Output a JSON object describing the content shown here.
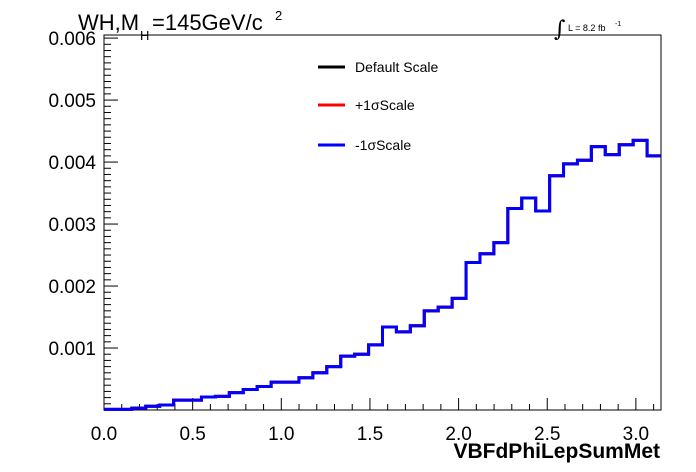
{
  "chart_data": {
    "type": "line",
    "title": "WH,M",
    "title_sub": "H",
    "title_rest": "=145GeV/c",
    "title_sup": "2",
    "lumi_label": "L = 8.2 fb",
    "lumi_sup": "-1",
    "xlabel": "VBFdPhiLepSumMet",
    "ylabel": "",
    "xlim": [
      0.0,
      3.1416
    ],
    "ylim": [
      0.0,
      0.00605
    ],
    "x_ticks": [
      "0.0",
      "0.5",
      "1.0",
      "1.5",
      "2.0",
      "2.5",
      "3.0"
    ],
    "y_ticks": [
      "0.001",
      "0.002",
      "0.003",
      "0.004",
      "0.005",
      "0.006"
    ],
    "legend_position": "top-center",
    "grid": false,
    "bin_edges": [
      0.0,
      0.0785,
      0.1571,
      0.2356,
      0.3142,
      0.3927,
      0.4712,
      0.5498,
      0.6283,
      0.7069,
      0.7854,
      0.8639,
      0.9425,
      1.021,
      1.0996,
      1.1781,
      1.2566,
      1.3352,
      1.4137,
      1.4923,
      1.5708,
      1.6493,
      1.7279,
      1.8064,
      1.885,
      1.9635,
      2.042,
      2.1206,
      2.1991,
      2.2777,
      2.3562,
      2.4347,
      2.5133,
      2.5918,
      2.6704,
      2.7489,
      2.8274,
      2.906,
      2.9845,
      3.0631,
      3.1416
    ],
    "series": [
      {
        "name": "Default Scale",
        "color": "#000000",
        "values": [
          1e-05,
          1e-05,
          3e-05,
          6e-05,
          8e-05,
          0.00016,
          0.00016,
          0.00021,
          0.00022,
          0.00028,
          0.00033,
          0.00038,
          0.00045,
          0.00045,
          0.00052,
          0.0006,
          0.0007,
          0.00087,
          0.0009,
          0.00105,
          0.00134,
          0.00126,
          0.00136,
          0.0016,
          0.00166,
          0.0018,
          0.00238,
          0.00252,
          0.0027,
          0.00325,
          0.00342,
          0.00321,
          0.00378,
          0.00397,
          0.00403,
          0.00425,
          0.00412,
          0.00428,
          0.00435,
          0.0041
        ]
      },
      {
        "name": "+1σScale",
        "color": "#ff0000",
        "values": [
          1e-05,
          1e-05,
          3e-05,
          6e-05,
          8e-05,
          0.00016,
          0.00016,
          0.00021,
          0.00022,
          0.00028,
          0.00033,
          0.00038,
          0.00045,
          0.00045,
          0.00052,
          0.0006,
          0.0007,
          0.00087,
          0.0009,
          0.00105,
          0.00134,
          0.00126,
          0.00136,
          0.0016,
          0.00166,
          0.0018,
          0.00238,
          0.00252,
          0.0027,
          0.00325,
          0.00342,
          0.00321,
          0.00378,
          0.00397,
          0.00403,
          0.00425,
          0.00412,
          0.00428,
          0.00435,
          0.0041
        ]
      },
      {
        "name": "-1σScale",
        "color": "#0000ff",
        "values": [
          1e-05,
          1e-05,
          3e-05,
          6e-05,
          8e-05,
          0.00016,
          0.00016,
          0.00021,
          0.00022,
          0.00028,
          0.00033,
          0.00038,
          0.00045,
          0.00045,
          0.00052,
          0.0006,
          0.0007,
          0.00087,
          0.0009,
          0.00105,
          0.00134,
          0.00126,
          0.00136,
          0.0016,
          0.00166,
          0.0018,
          0.00238,
          0.00252,
          0.0027,
          0.00325,
          0.00342,
          0.00321,
          0.00378,
          0.00397,
          0.00403,
          0.00425,
          0.00412,
          0.00428,
          0.00435,
          0.0041
        ]
      }
    ]
  }
}
